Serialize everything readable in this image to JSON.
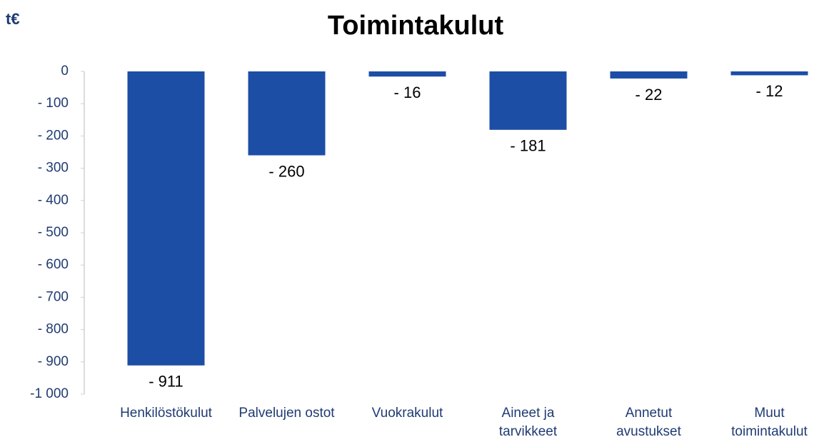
{
  "chart_data": {
    "type": "bar",
    "title": "Toimintakulut",
    "unit_label": "t€",
    "categories": [
      "Henkilöstökulut",
      "Palvelujen ostot",
      "Vuokrakulut",
      "Aineet ja\ntarvikkeet",
      "Annetut\navustukset",
      "Muut\ntoimintakulut"
    ],
    "values": [
      -911,
      -260,
      -16,
      -181,
      -22,
      -12
    ],
    "value_labels": [
      "- 911",
      "- 260",
      "- 16",
      "- 181",
      "- 22",
      "- 12"
    ],
    "color": "#1d4ea6",
    "ylim": [
      -1000,
      0
    ],
    "yticks": [
      0,
      {
        "value": -100,
        "label": "- 100"
      },
      {
        "value": -200,
        "label": "- 200"
      },
      {
        "value": -300,
        "label": "- 300"
      },
      {
        "value": -400,
        "label": "- 400"
      },
      {
        "value": -500,
        "label": "- 500"
      },
      {
        "value": -600,
        "label": "- 600"
      },
      {
        "value": -700,
        "label": "- 700"
      },
      {
        "value": -800,
        "label": "- 800"
      },
      {
        "value": -900,
        "label": "- 900"
      },
      {
        "value": -1000,
        "label": "-1 000"
      }
    ],
    "grid": false
  }
}
